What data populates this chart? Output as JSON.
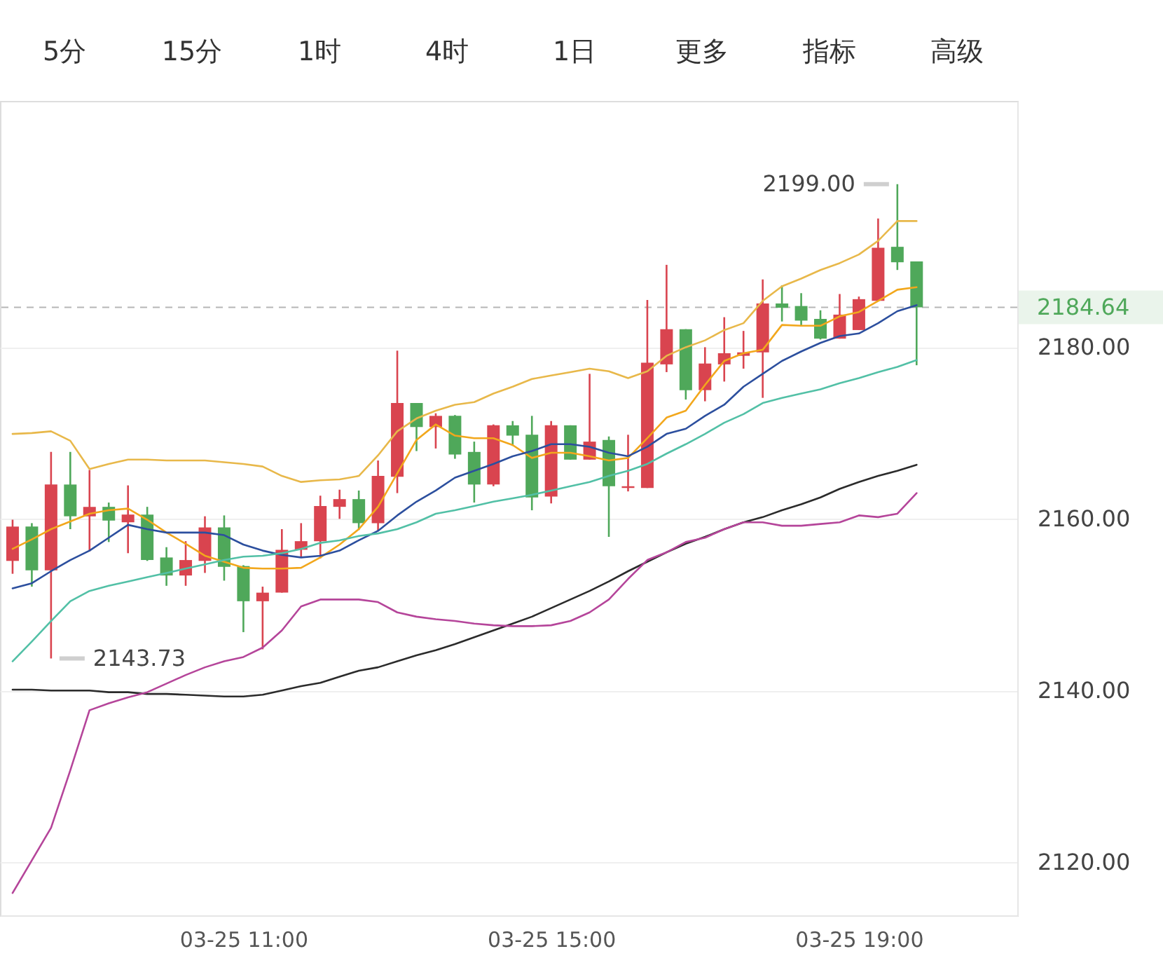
{
  "chart_data": {
    "type": "candlestick",
    "categories": [
      null,
      null,
      null,
      null,
      null,
      null,
      null,
      null,
      null,
      null,
      null,
      null,
      "03-25 11:00",
      null,
      null,
      null,
      null,
      null,
      null,
      null,
      null,
      null,
      null,
      null,
      null,
      null,
      null,
      null,
      "03-25 15:00",
      null,
      null,
      null,
      null,
      null,
      null,
      null,
      null,
      null,
      null,
      null,
      null,
      null,
      null,
      null,
      "03-25 19:00",
      null,
      null,
      null
    ],
    "ohlc": [
      [
        2155.1,
        2159.9,
        2153.6,
        2159.1
      ],
      [
        2159.1,
        2159.5,
        2152.1,
        2154.0
      ],
      [
        2154.0,
        2167.8,
        2143.73,
        2164.0
      ],
      [
        2164.0,
        2167.8,
        2158.8,
        2160.3
      ],
      [
        2160.3,
        2165.7,
        2156.2,
        2161.4
      ],
      [
        2161.4,
        2161.9,
        2157.3,
        2159.8
      ],
      [
        2159.6,
        2163.9,
        2156.0,
        2160.5
      ],
      [
        2160.5,
        2161.4,
        2155.1,
        2155.2
      ],
      [
        2155.5,
        2156.7,
        2152.2,
        2153.4
      ],
      [
        2153.4,
        2157.4,
        2152.2,
        2155.2
      ],
      [
        2155.1,
        2160.3,
        2153.7,
        2159.0
      ],
      [
        2159.0,
        2160.4,
        2152.8,
        2154.4
      ],
      [
        2154.5,
        2154.6,
        2146.8,
        2150.4
      ],
      [
        2150.4,
        2152.1,
        2144.8,
        2151.4
      ],
      [
        2151.4,
        2158.8,
        2151.4,
        2156.4
      ],
      [
        2156.4,
        2159.5,
        2155.6,
        2157.4
      ],
      [
        2157.4,
        2162.7,
        2155.4,
        2161.5
      ],
      [
        2161.4,
        2163.4,
        2160.0,
        2162.3
      ],
      [
        2162.3,
        2163.3,
        2158.7,
        2159.5
      ],
      [
        2159.5,
        2166.8,
        2158.6,
        2165.0
      ],
      [
        2164.9,
        2179.6,
        2163.0,
        2173.5
      ],
      [
        2173.5,
        2173.5,
        2167.9,
        2170.7
      ],
      [
        2170.7,
        2172.3,
        2168.2,
        2172.0
      ],
      [
        2172.0,
        2172.1,
        2167.0,
        2167.5
      ],
      [
        2167.8,
        2169.0,
        2161.9,
        2164.0
      ],
      [
        2164.0,
        2171.0,
        2163.8,
        2170.9
      ],
      [
        2170.9,
        2171.4,
        2168.5,
        2169.7
      ],
      [
        2169.8,
        2172.0,
        2161.0,
        2162.5
      ],
      [
        2162.6,
        2171.4,
        2161.8,
        2170.9
      ],
      [
        2170.9,
        2170.9,
        2166.9,
        2166.9
      ],
      [
        2166.9,
        2176.9,
        2166.9,
        2169.0
      ],
      [
        2169.2,
        2169.6,
        2157.9,
        2163.8
      ],
      [
        2163.6,
        2169.8,
        2163.2,
        2163.8
      ],
      [
        2163.6,
        2185.5,
        2163.6,
        2178.2
      ],
      [
        2178.0,
        2189.6,
        2177.1,
        2182.1
      ],
      [
        2182.1,
        2182.1,
        2173.9,
        2175.0
      ],
      [
        2175.0,
        2180.0,
        2173.7,
        2178.1
      ],
      [
        2178.0,
        2183.5,
        2176.0,
        2179.3
      ],
      [
        2179.0,
        2181.9,
        2177.5,
        2179.4
      ],
      [
        2179.4,
        2187.9,
        2174.1,
        2185.1
      ],
      [
        2185.1,
        2187.2,
        2183.0,
        2184.6
      ],
      [
        2184.8,
        2186.3,
        2182.4,
        2183.1
      ],
      [
        2183.3,
        2184.3,
        2180.9,
        2181.0
      ],
      [
        2181.0,
        2186.2,
        2181.0,
        2183.8
      ],
      [
        2182.0,
        2185.9,
        2182.0,
        2185.6
      ],
      [
        2185.4,
        2195.0,
        2185.4,
        2191.6
      ],
      [
        2191.7,
        2199.0,
        2189.0,
        2189.9
      ],
      [
        2190.0,
        2190.0,
        2177.9,
        2184.64
      ]
    ],
    "colors": [
      "#d9444f",
      "#4fa85a",
      "#d9444f",
      "#4fa85a",
      "#d9444f",
      "#4fa85a",
      "#d9444f",
      "#4fa85a",
      "#4fa85a",
      "#d9444f",
      "#d9444f",
      "#4fa85a",
      "#4fa85a",
      "#d9444f",
      "#d9444f",
      "#d9444f",
      "#d9444f",
      "#d9444f",
      "#4fa85a",
      "#d9444f",
      "#d9444f",
      "#4fa85a",
      "#d9444f",
      "#4fa85a",
      "#4fa85a",
      "#d9444f",
      "#4fa85a",
      "#4fa85a",
      "#d9444f",
      "#4fa85a",
      "#d9444f",
      "#4fa85a",
      "#d9444f",
      "#d9444f",
      "#d9444f",
      "#4fa85a",
      "#d9444f",
      "#d9444f",
      "#d9444f",
      "#d9444f",
      "#4fa85a",
      "#4fa85a",
      "#4fa85a",
      "#d9444f",
      "#d9444f",
      "#d9444f",
      "#4fa85a",
      "#4fa85a"
    ],
    "series": [
      {
        "type": "line",
        "color": "#e8b84a",
        "values": [
          2169.9,
          2170.0,
          2170.2,
          2169.1,
          2165.8,
          2166.4,
          2166.9,
          2166.9,
          2166.8,
          2166.8,
          2166.8,
          2166.6,
          2166.4,
          2166.1,
          2165.0,
          2164.3,
          2164.5,
          2164.6,
          2165.0,
          2167.4,
          2170.2,
          2171.7,
          2172.6,
          2173.3,
          2173.6,
          2174.6,
          2175.4,
          2176.3,
          2176.7,
          2177.1,
          2177.5,
          2177.2,
          2176.4,
          2177.2,
          2179.0,
          2180.0,
          2180.8,
          2182.0,
          2182.8,
          2185.4,
          2187.1,
          2188.0,
          2189.0,
          2189.8,
          2190.8,
          2192.4,
          2194.7,
          2194.7
        ]
      },
      {
        "type": "line",
        "color": "#f2a71c",
        "values": [
          2156.5,
          2157.6,
          2158.8,
          2159.7,
          2160.6,
          2161.0,
          2161.2,
          2159.9,
          2158.4,
          2157.1,
          2155.7,
          2155.0,
          2154.3,
          2154.2,
          2154.2,
          2154.3,
          2155.5,
          2157.0,
          2158.8,
          2161.4,
          2165.3,
          2169.2,
          2171.0,
          2169.7,
          2169.4,
          2169.4,
          2168.6,
          2167.1,
          2167.7,
          2167.7,
          2167.3,
          2166.8,
          2167.1,
          2169.4,
          2171.8,
          2172.6,
          2175.6,
          2178.4,
          2179.3,
          2179.7,
          2182.6,
          2182.5,
          2182.5,
          2183.6,
          2184.1,
          2185.4,
          2186.7,
          2187.0
        ]
      },
      {
        "type": "line",
        "color": "#2c4f9e",
        "values": [
          2151.9,
          2152.5,
          2153.9,
          2155.2,
          2156.3,
          2157.8,
          2159.3,
          2158.8,
          2158.4,
          2158.4,
          2158.4,
          2158.1,
          2157.0,
          2156.3,
          2155.8,
          2155.5,
          2155.7,
          2156.3,
          2157.5,
          2158.6,
          2160.4,
          2162.0,
          2163.3,
          2164.8,
          2165.6,
          2166.4,
          2167.3,
          2167.9,
          2168.7,
          2168.7,
          2168.4,
          2167.7,
          2167.3,
          2168.4,
          2169.9,
          2170.5,
          2172.0,
          2173.3,
          2175.4,
          2176.9,
          2178.4,
          2179.5,
          2180.5,
          2181.3,
          2181.6,
          2182.8,
          2184.2,
          2184.9
        ]
      },
      {
        "type": "line",
        "color": "#52c0a6",
        "values": [
          2143.4,
          2145.7,
          2148.1,
          2150.4,
          2151.6,
          2152.2,
          2152.7,
          2153.2,
          2153.7,
          2154.2,
          2154.7,
          2155.2,
          2155.6,
          2155.7,
          2156.0,
          2156.5,
          2157.2,
          2157.5,
          2158.0,
          2158.3,
          2158.8,
          2159.6,
          2160.6,
          2161.0,
          2161.5,
          2162.0,
          2162.4,
          2162.8,
          2163.3,
          2163.8,
          2164.3,
          2165.0,
          2165.6,
          2166.4,
          2167.6,
          2168.7,
          2169.9,
          2171.2,
          2172.2,
          2173.5,
          2174.1,
          2174.6,
          2175.1,
          2175.8,
          2176.4,
          2177.1,
          2177.7,
          2178.5
        ]
      },
      {
        "type": "line",
        "color": "#2b2b2b",
        "values": [
          2140.1,
          2140.1,
          2140.0,
          2140.0,
          2140.0,
          2139.8,
          2139.8,
          2139.6,
          2139.6,
          2139.5,
          2139.4,
          2139.3,
          2139.3,
          2139.5,
          2140.0,
          2140.5,
          2140.9,
          2141.6,
          2142.3,
          2142.7,
          2143.4,
          2144.1,
          2144.7,
          2145.4,
          2146.2,
          2147.0,
          2147.8,
          2148.6,
          2149.6,
          2150.6,
          2151.6,
          2152.7,
          2153.9,
          2155.0,
          2156.1,
          2157.1,
          2157.9,
          2158.8,
          2159.6,
          2160.2,
          2161.0,
          2161.7,
          2162.5,
          2163.5,
          2164.3,
          2165.0,
          2165.6,
          2166.3
        ]
      },
      {
        "type": "line",
        "color": "#b5459a",
        "values": [
          2116.4,
          2120.2,
          2124.0,
          2130.7,
          2137.7,
          2138.5,
          2139.2,
          2139.8,
          2140.8,
          2141.8,
          2142.7,
          2143.4,
          2143.9,
          2145.0,
          2147.0,
          2149.8,
          2150.6,
          2150.6,
          2150.6,
          2150.3,
          2149.1,
          2148.6,
          2148.3,
          2148.1,
          2147.8,
          2147.6,
          2147.5,
          2147.5,
          2147.6,
          2148.1,
          2149.1,
          2150.6,
          2153.0,
          2155.2,
          2156.1,
          2157.3,
          2157.8,
          2158.8,
          2159.6,
          2159.6,
          2159.2,
          2159.2,
          2159.4,
          2159.6,
          2160.4,
          2160.2,
          2160.6,
          2163.0
        ]
      }
    ],
    "ylim": [
      2113.8,
      2208.7
    ],
    "yticks": [
      {
        "value": 2120,
        "label": "2120.00"
      },
      {
        "value": 2140,
        "label": "2140.00"
      },
      {
        "value": 2160,
        "label": "2160.00"
      },
      {
        "value": 2180,
        "label": "2180.00"
      }
    ],
    "grid": "y",
    "ref_lines": [
      {
        "axis": "y",
        "value": 2184.64,
        "label": "2184.64",
        "color": "#b5b5b5",
        "line_style": "dashed"
      }
    ],
    "annotations": [
      "5分",
      "15分",
      "1时",
      "4时",
      "1日",
      "更多",
      "指标",
      "高级",
      "2199.00",
      "2143.73"
    ]
  }
}
